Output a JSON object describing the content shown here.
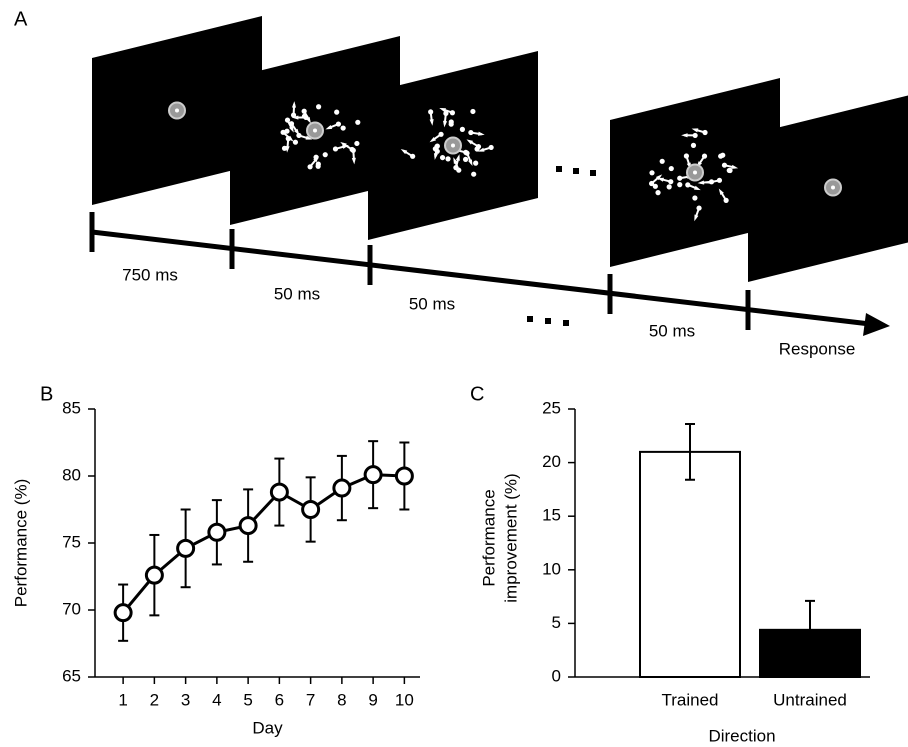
{
  "panel_a": {
    "label": "A",
    "intervals": [
      "750 ms",
      "50 ms",
      "50 ms",
      "50 ms"
    ],
    "response": "Response"
  },
  "chart_data": [
    {
      "type": "line",
      "panel_label": "B",
      "ylabel": "Performance (%)",
      "xlabel": "Day",
      "x": [
        1,
        2,
        3,
        4,
        5,
        6,
        7,
        8,
        9,
        10
      ],
      "series": [
        {
          "color": "#000000",
          "values": [
            69.8,
            72.6,
            74.6,
            75.8,
            76.3,
            78.8,
            77.5,
            79.1,
            80.1,
            80.0
          ],
          "errors": [
            2.1,
            3.0,
            2.9,
            2.4,
            2.7,
            2.5,
            2.4,
            2.4,
            2.5,
            2.5
          ]
        }
      ],
      "xlim": [
        0.1,
        10.5
      ],
      "xticks": [
        1,
        2,
        3,
        4,
        5,
        6,
        7,
        8,
        9,
        10
      ],
      "ylim": [
        65,
        85
      ],
      "yticks": [
        65,
        70,
        75,
        80,
        85
      ]
    },
    {
      "type": "bar",
      "panel_label": "C",
      "ylabel": [
        "Performance",
        "improvement (%)"
      ],
      "xlabel": "Direction",
      "categories": [
        "Trained",
        "Untrained"
      ],
      "values": [
        21,
        4.4
      ],
      "errors": [
        2.6,
        2.7
      ],
      "colors": [
        "#ffffff",
        "#000000"
      ],
      "ylim": [
        0,
        25
      ],
      "yticks": [
        0,
        5,
        10,
        15,
        20,
        25
      ]
    }
  ]
}
